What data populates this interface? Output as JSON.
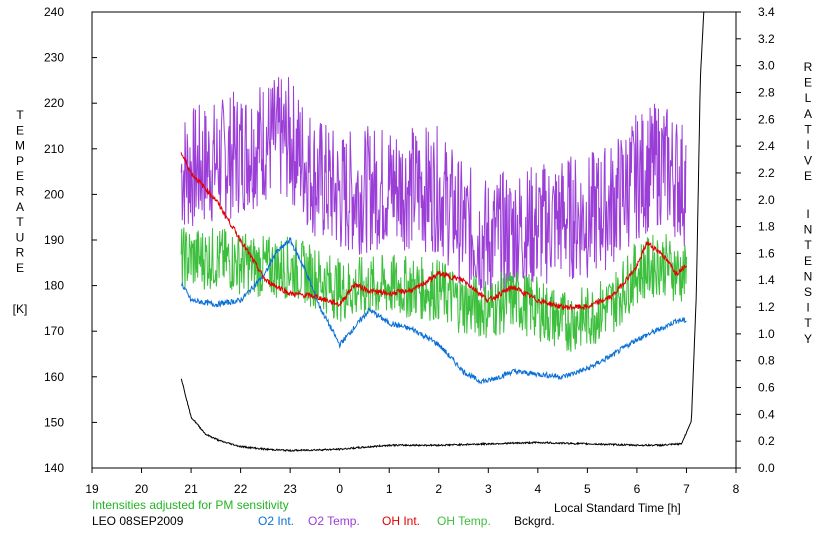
{
  "chart_data": {
    "type": "line",
    "xlabel": "Local Standard Time [h]",
    "x_ticks": [
      "19",
      "20",
      "21",
      "22",
      "23",
      "0",
      "1",
      "2",
      "3",
      "4",
      "5",
      "6",
      "7",
      "8"
    ],
    "xlim": [
      19,
      32
    ],
    "y_left": {
      "label_letters": [
        "T",
        "E",
        "M",
        "P",
        "E",
        "R",
        "A",
        "T",
        "U",
        "R",
        "E"
      ],
      "unit": "[K]",
      "ticks": [
        "240",
        "230",
        "220",
        "210",
        "200",
        "190",
        "180",
        "170",
        "160",
        "150",
        "140"
      ],
      "ylim": [
        140,
        240
      ]
    },
    "y_right": {
      "label_word1": [
        "R",
        "E",
        "L",
        "A",
        "T",
        "I",
        "V",
        "E"
      ],
      "label_word2": [
        "I",
        "N",
        "T",
        "E",
        "N",
        "S",
        "I",
        "T",
        "Y"
      ],
      "ticks": [
        "3.4",
        "3.2",
        "3.0",
        "2.8",
        "2.6",
        "2.4",
        "2.2",
        "2.0",
        "1.8",
        "1.6",
        "1.4",
        "1.2",
        "1.0",
        "0.8",
        "0.6",
        "0.4",
        "0.2",
        "0.0"
      ],
      "ylim": [
        0,
        3.4
      ]
    },
    "note": "Intensities adjusted for PM sensitivity",
    "station": "LEO 08SEP2009",
    "legend": [
      {
        "name": "O2 Int.",
        "color": "#0a6fd6"
      },
      {
        "name": "O2 Temp.",
        "color": "#9b3ed8"
      },
      {
        "name": "OH Int.",
        "color": "#e20000"
      },
      {
        "name": "OH Temp.",
        "color": "#3cbf3c"
      },
      {
        "name": "Bckgrd.",
        "color": "#000000"
      }
    ],
    "series": [
      {
        "name": "O2 Temp.",
        "axis": "left",
        "color": "#9b3ed8",
        "noise": 14,
        "x": [
          20.8,
          21.5,
          22.5,
          23.0,
          23.5,
          24.0,
          25.0,
          26.0,
          26.5,
          27.0,
          27.5,
          28.0,
          28.5,
          29.0,
          29.5,
          30.0,
          30.5,
          31.0
        ],
        "y": [
          205,
          207,
          212,
          212,
          204,
          200,
          202,
          201,
          193,
          190,
          192,
          193,
          195,
          195,
          198,
          204,
          207,
          202
        ]
      },
      {
        "name": "OH Temp.",
        "axis": "left",
        "color": "#3cbf3c",
        "noise": 7,
        "x": [
          20.8,
          21.5,
          22.5,
          23.0,
          23.5,
          24.0,
          25.0,
          26.0,
          26.5,
          27.0,
          27.5,
          28.0,
          28.5,
          29.0,
          29.5,
          30.0,
          30.5,
          31.0
        ],
        "y": [
          186,
          186,
          184,
          184,
          182,
          179,
          180,
          179,
          176,
          175,
          177,
          175,
          172,
          173,
          176,
          183,
          185,
          182
        ]
      },
      {
        "name": "O2 Int.",
        "axis": "right",
        "color": "#0a6fd6",
        "noise": 0.02,
        "x": [
          20.8,
          21.0,
          21.5,
          22.0,
          22.5,
          22.7,
          23.0,
          23.3,
          23.6,
          24.0,
          24.3,
          24.6,
          25.0,
          25.5,
          26.0,
          26.5,
          26.8,
          27.0,
          27.5,
          28.0,
          28.5,
          29.0,
          29.5,
          30.0,
          30.5,
          30.8,
          31.0
        ],
        "y": [
          1.38,
          1.25,
          1.22,
          1.25,
          1.45,
          1.6,
          1.7,
          1.48,
          1.2,
          0.92,
          1.05,
          1.18,
          1.08,
          1.03,
          0.92,
          0.72,
          0.65,
          0.65,
          0.72,
          0.7,
          0.68,
          0.74,
          0.84,
          0.96,
          1.04,
          1.1,
          1.1
        ]
      },
      {
        "name": "OH Int.",
        "axis": "right",
        "color": "#e20000",
        "noise": 0.02,
        "x": [
          20.8,
          21.0,
          21.5,
          22.0,
          22.5,
          23.0,
          23.5,
          24.0,
          24.3,
          24.6,
          25.0,
          25.5,
          26.0,
          26.5,
          27.0,
          27.5,
          28.0,
          28.5,
          29.0,
          29.5,
          30.0,
          30.2,
          30.5,
          30.8,
          31.0
        ],
        "y": [
          2.35,
          2.2,
          2.0,
          1.7,
          1.4,
          1.3,
          1.28,
          1.22,
          1.37,
          1.32,
          1.3,
          1.33,
          1.45,
          1.4,
          1.25,
          1.35,
          1.25,
          1.2,
          1.2,
          1.28,
          1.5,
          1.68,
          1.6,
          1.45,
          1.52
        ]
      },
      {
        "name": "Bckgrd.",
        "axis": "right",
        "color": "#000000",
        "noise": 0.006,
        "x": [
          20.8,
          21.0,
          21.3,
          21.6,
          22.0,
          22.5,
          23.0,
          24.0,
          25.0,
          26.0,
          27.0,
          28.0,
          29.0,
          30.0,
          30.5,
          30.9,
          31.1,
          31.2,
          31.28,
          31.35
        ],
        "y": [
          0.67,
          0.38,
          0.25,
          0.2,
          0.16,
          0.14,
          0.13,
          0.14,
          0.17,
          0.17,
          0.18,
          0.19,
          0.18,
          0.17,
          0.17,
          0.18,
          0.35,
          1.3,
          2.9,
          3.4
        ]
      }
    ]
  }
}
